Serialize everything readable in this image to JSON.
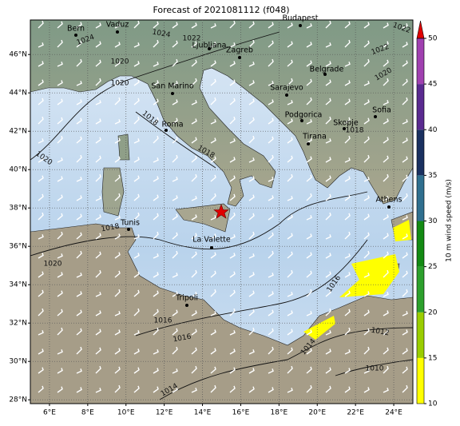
{
  "title": "Forecast of 2021081112 (f048)",
  "map": {
    "lon_ticks": [
      {
        "value": 6,
        "label": "6°E"
      },
      {
        "value": 8,
        "label": "8°E"
      },
      {
        "value": 10,
        "label": "10°E"
      },
      {
        "value": 12,
        "label": "12°E"
      },
      {
        "value": 14,
        "label": "14°E"
      },
      {
        "value": 16,
        "label": "16°E"
      },
      {
        "value": 18,
        "label": "18°E"
      },
      {
        "value": 20,
        "label": "20°E"
      },
      {
        "value": 22,
        "label": "22°E"
      },
      {
        "value": 24,
        "label": "24°E"
      }
    ],
    "lat_ticks": [
      {
        "value": 28,
        "label": "28°N"
      },
      {
        "value": 30,
        "label": "30°N"
      },
      {
        "value": 32,
        "label": "32°N"
      },
      {
        "value": 34,
        "label": "34°N"
      },
      {
        "value": 36,
        "label": "36°N"
      },
      {
        "value": 38,
        "label": "38°N"
      },
      {
        "value": 40,
        "label": "40°N"
      },
      {
        "value": 42,
        "label": "42°N"
      },
      {
        "value": 44,
        "label": "44°N"
      },
      {
        "value": 46,
        "label": "46°N"
      }
    ],
    "lon_lim": [
      5,
      25
    ],
    "lat_lim": [
      27.8,
      47.8
    ],
    "cities": [
      "Bern",
      "Vaduz",
      "Budapest",
      "Ljubljana",
      "Zagreb",
      "San Marino",
      "Belgrade",
      "Sarajevo",
      "Roma",
      "Podgorica",
      "Skopje",
      "Tirana",
      "Sofia",
      "Athens",
      "Tunis",
      "La Valette",
      "Tripoli"
    ],
    "isobar_labels": [
      1024,
      1024,
      1022,
      1020,
      1020,
      1018,
      1018,
      1020,
      1018,
      1020,
      1016,
      1016,
      1016,
      1014,
      1012,
      1010,
      1014,
      1022,
      1022,
      1018,
      1020
    ]
  },
  "colorbar": {
    "label": "10 m wind speed (m/s)",
    "ticks": [
      10,
      15,
      20,
      25,
      30,
      35,
      40,
      45,
      50
    ],
    "colors": [
      "#ffff00",
      "#9acd00",
      "#2ca02c",
      "#138a13",
      "#2f6f8f",
      "#1a3060",
      "#5a2a90",
      "#a040b0"
    ],
    "extend_color": "#e00000"
  }
}
